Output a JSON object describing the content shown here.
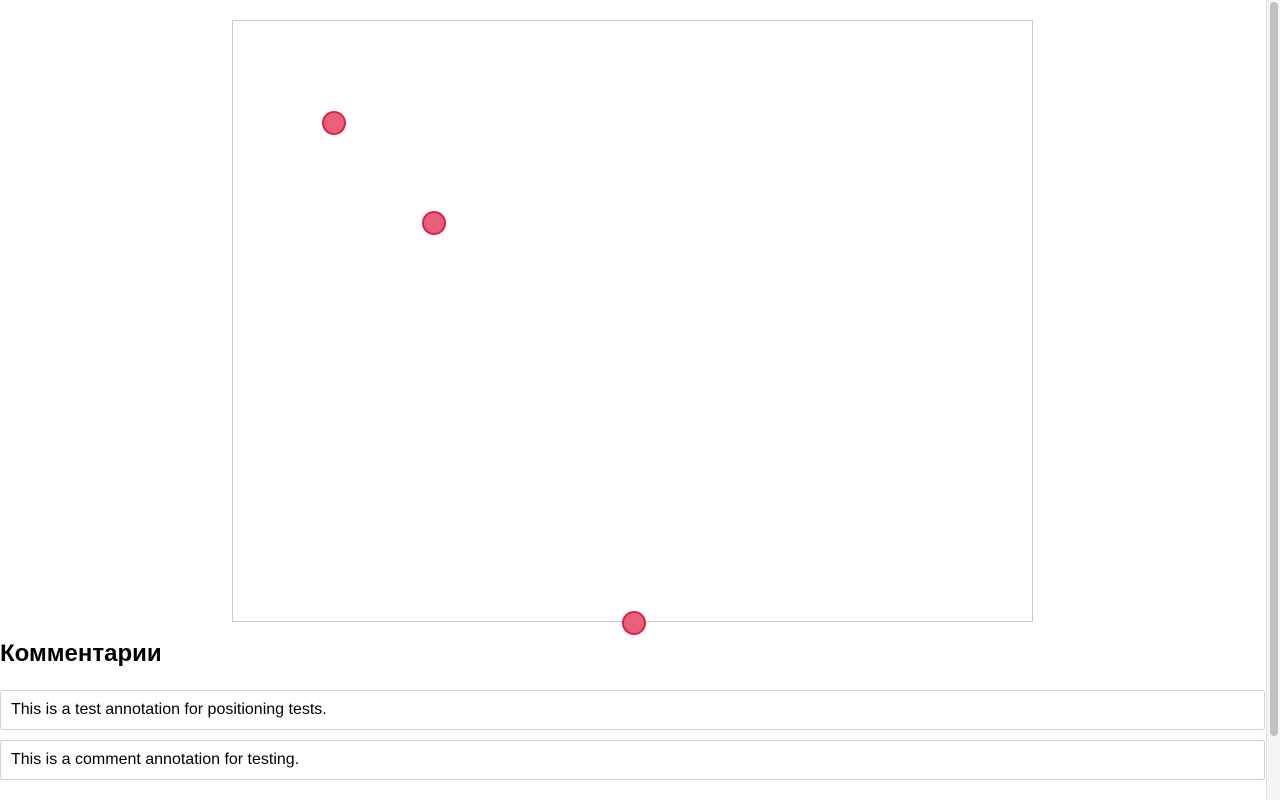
{
  "comments_section": {
    "title": "Комментарии",
    "items": [
      {
        "text": "This is a test annotation for positioning tests."
      },
      {
        "text": "This is a comment annotation for testing."
      }
    ]
  },
  "markers": {
    "color_fill": "#e8607a",
    "color_stroke": "#dc1f47",
    "count": 3
  }
}
